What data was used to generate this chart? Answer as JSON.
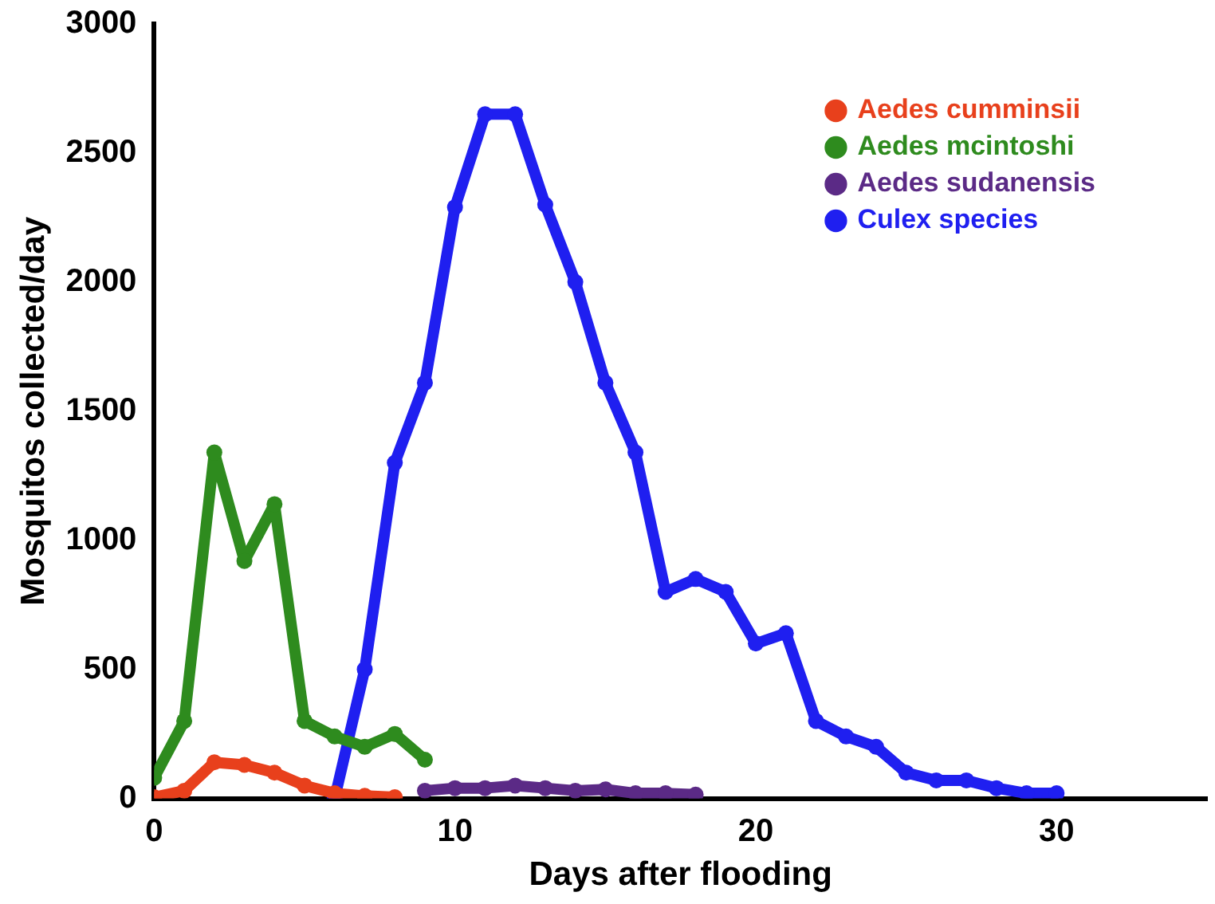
{
  "chart_data": {
    "type": "line",
    "xlabel": "Days after flooding",
    "ylabel": "Mosquitos collected/day",
    "xlim": [
      0,
      35
    ],
    "xticks": [
      0,
      10,
      20,
      30
    ],
    "ylim": [
      0,
      3000
    ],
    "yticks": [
      0,
      500,
      1000,
      1500,
      2000,
      2500,
      3000
    ],
    "grid": false,
    "legend": "top right",
    "marker": "circle",
    "line_style": "solid",
    "series": [
      {
        "name": "Aedes cumminsii",
        "color": "#e8401c",
        "x": [
          0,
          1,
          2,
          3,
          4,
          5,
          6,
          7,
          8
        ],
        "values": [
          5,
          30,
          140,
          130,
          100,
          50,
          20,
          10,
          5
        ]
      },
      {
        "name": "Aedes mcintoshi",
        "color": "#2e8b1e",
        "x": [
          0,
          1,
          2,
          3,
          4,
          5,
          6,
          7,
          8,
          9
        ],
        "values": [
          80,
          300,
          1340,
          920,
          1140,
          300,
          240,
          200,
          250,
          150
        ]
      },
      {
        "name": "Aedes sudanensis",
        "color": "#5b2a86",
        "x": [
          9,
          10,
          11,
          12,
          13,
          14,
          15,
          16,
          17,
          18
        ],
        "values": [
          30,
          40,
          40,
          50,
          40,
          30,
          35,
          20,
          20,
          15
        ]
      },
      {
        "name": "Culex species",
        "color": "#1f1ff0",
        "x": [
          6,
          7,
          8,
          9,
          10,
          11,
          12,
          13,
          14,
          15,
          16,
          17,
          18,
          19,
          20,
          21,
          22,
          23,
          24,
          25,
          26,
          27,
          28,
          29,
          30
        ],
        "values": [
          0,
          500,
          1300,
          1610,
          2290,
          2650,
          2650,
          2300,
          2000,
          1610,
          1340,
          800,
          850,
          800,
          600,
          640,
          300,
          240,
          200,
          100,
          70,
          70,
          40,
          20,
          20
        ]
      }
    ]
  }
}
